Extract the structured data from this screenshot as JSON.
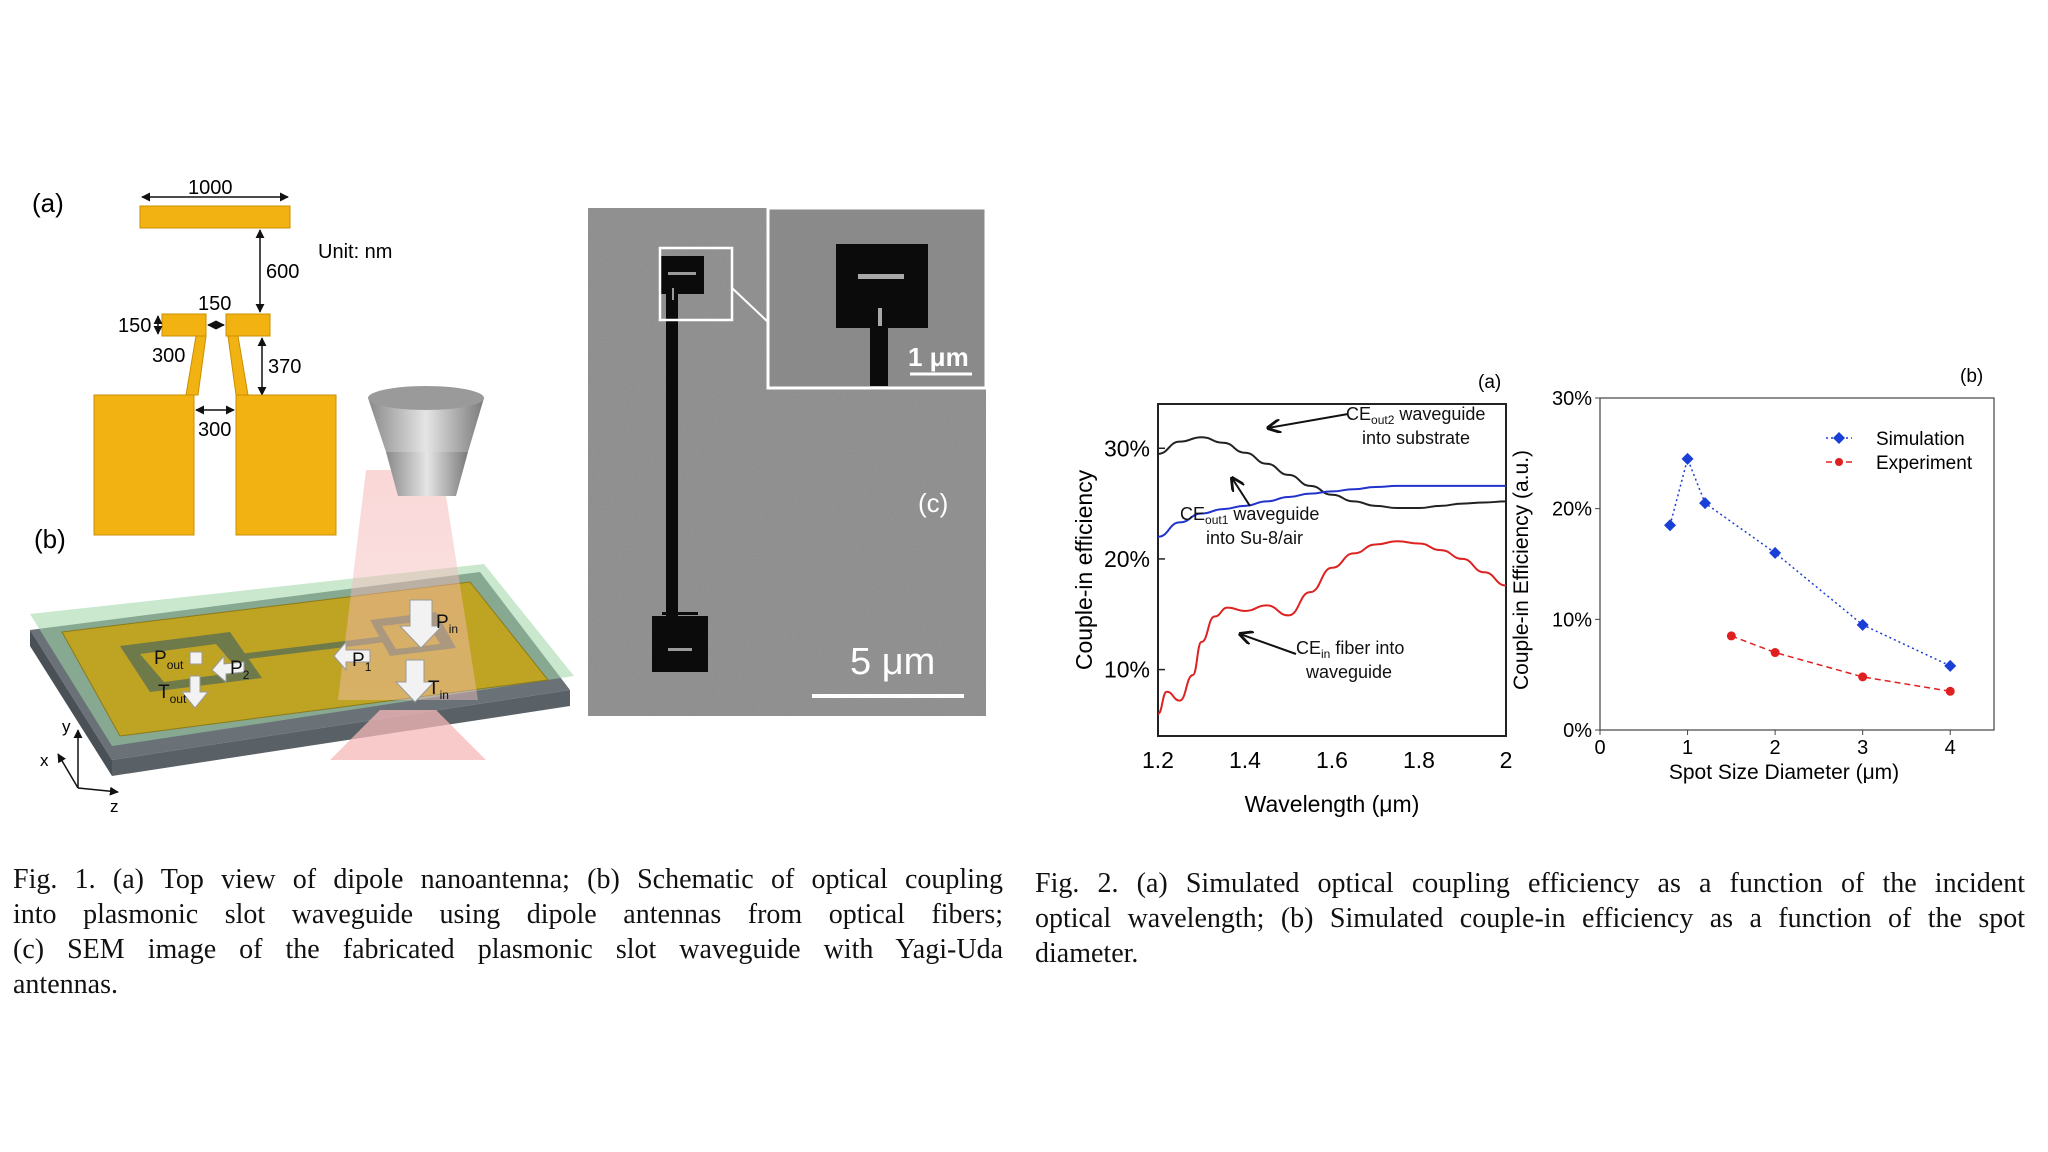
{
  "fig1": {
    "panel_a": {
      "label": "(a)",
      "dim_1000": "1000",
      "dim_600": "600",
      "unit": "Unit: nm",
      "dim_150_top": "150",
      "dim_150_left": "150",
      "dim_300_left": "300",
      "dim_370": "370",
      "dim_300_gap": "300"
    },
    "panel_b": {
      "label": "(b)",
      "p_out": "P",
      "p_out_sub": "out",
      "p2": "P",
      "p2_sub": "2",
      "p1": "P",
      "p1_sub": "1",
      "p_in": "P",
      "p_in_sub": "in",
      "t_out": "T",
      "t_out_sub": "out",
      "t_in": "T",
      "t_in_sub": "in",
      "axis_y": "y",
      "axis_x": "x",
      "axis_z": "z"
    },
    "panel_c": {
      "label": "(c)",
      "scale_main": "5 μm",
      "scale_inset": "1 μm"
    },
    "caption_lines": [
      "Fig. 1.   (a) Top view of dipole nanoantenna; (b) Schematic of optical coupling",
      "into plasmonic slot waveguide using dipole antennas from optical fibers;",
      "(c) SEM image of the fabricated plasmonic slot waveguide with Yagi-Uda",
      "antennas."
    ]
  },
  "fig2": {
    "caption_lines": [
      "Fig. 2.   (a) Simulated optical coupling efficiency as a function of the incident",
      "optical wavelength; (b) Simulated couple-in efficiency as a function of the spot",
      "diameter."
    ]
  },
  "chart_data": [
    {
      "type": "line",
      "panel_label": "(a)",
      "xlabel": "Wavelength (μm)",
      "ylabel": "Couple-in efficiency",
      "xlim": [
        1.2,
        2.0
      ],
      "ylim": [
        4,
        34
      ],
      "xticks": [
        "1.2",
        "1.4",
        "1.6",
        "1.8",
        "2"
      ],
      "yticks": [
        {
          "value": 10,
          "label": "10%"
        },
        {
          "value": 20,
          "label": "20%"
        },
        {
          "value": 30,
          "label": "30%"
        }
      ],
      "grid": false,
      "series": [
        {
          "color": "#222222",
          "x": [
            1.2,
            1.25,
            1.3,
            1.35,
            1.4,
            1.45,
            1.5,
            1.55,
            1.6,
            1.65,
            1.7,
            1.75,
            1.8,
            1.85,
            1.9,
            1.95,
            2.0
          ],
          "y": [
            29.5,
            30.6,
            31.0,
            30.5,
            29.6,
            28.6,
            27.6,
            26.6,
            25.8,
            25.2,
            24.8,
            24.6,
            24.6,
            24.8,
            25.0,
            25.1,
            25.2
          ]
        },
        {
          "color": "#2233cc",
          "x": [
            1.2,
            1.25,
            1.3,
            1.35,
            1.4,
            1.45,
            1.5,
            1.55,
            1.6,
            1.65,
            1.7,
            1.75,
            1.8,
            1.85,
            1.9,
            1.95,
            2.0
          ],
          "y": [
            22.0,
            23.3,
            24.1,
            24.5,
            24.8,
            25.2,
            25.6,
            25.9,
            26.1,
            26.3,
            26.5,
            26.6,
            26.6,
            26.6,
            26.6,
            26.6,
            26.6
          ]
        },
        {
          "color": "#dd2222",
          "x": [
            1.2,
            1.22,
            1.25,
            1.28,
            1.3,
            1.33,
            1.36,
            1.4,
            1.45,
            1.5,
            1.55,
            1.6,
            1.65,
            1.7,
            1.75,
            1.8,
            1.85,
            1.9,
            1.95,
            2.0
          ],
          "y": [
            6.0,
            8.0,
            7.2,
            9.5,
            12.5,
            14.8,
            15.6,
            15.3,
            15.8,
            14.9,
            17.0,
            19.2,
            20.5,
            21.3,
            21.6,
            21.4,
            20.8,
            20.0,
            18.8,
            17.6
          ]
        }
      ],
      "annotations": [
        {
          "text": "CE",
          "sub": "out2",
          "rest": " waveguide",
          "line2": "into substrate"
        },
        {
          "text": "CE",
          "sub": "out1",
          "rest": " waveguide",
          "line2": "into Su-8/air"
        },
        {
          "text": "CE",
          "sub": "in",
          "rest": " fiber into",
          "line2": "waveguide"
        }
      ]
    },
    {
      "type": "scatter",
      "panel_label": "(b)",
      "xlabel": "Spot Size Diameter (μm)",
      "ylabel": "Couple-in Efficiency (a.u.)",
      "xlim": [
        0,
        4.5
      ],
      "ylim": [
        0,
        30
      ],
      "xticks": [
        "0",
        "1",
        "2",
        "3",
        "4"
      ],
      "yticks": [
        {
          "value": 0,
          "label": "0%"
        },
        {
          "value": 10,
          "label": "10%"
        },
        {
          "value": 20,
          "label": "20%"
        },
        {
          "value": 30,
          "label": "30%"
        }
      ],
      "grid": false,
      "legend": "top-right",
      "series": [
        {
          "name": "Simulation",
          "color": "#1a3fd6",
          "marker": "diamond",
          "line": "dotted",
          "x": [
            0.8,
            1.0,
            1.2,
            2.0,
            3.0,
            4.0
          ],
          "y": [
            18.5,
            24.5,
            20.5,
            16.0,
            9.5,
            5.8
          ]
        },
        {
          "name": "Experiment",
          "color": "#e02020",
          "marker": "circle",
          "line": "dashed",
          "x": [
            1.5,
            2.0,
            3.0,
            4.0
          ],
          "y": [
            8.5,
            7.0,
            4.8,
            3.5
          ]
        }
      ]
    }
  ]
}
